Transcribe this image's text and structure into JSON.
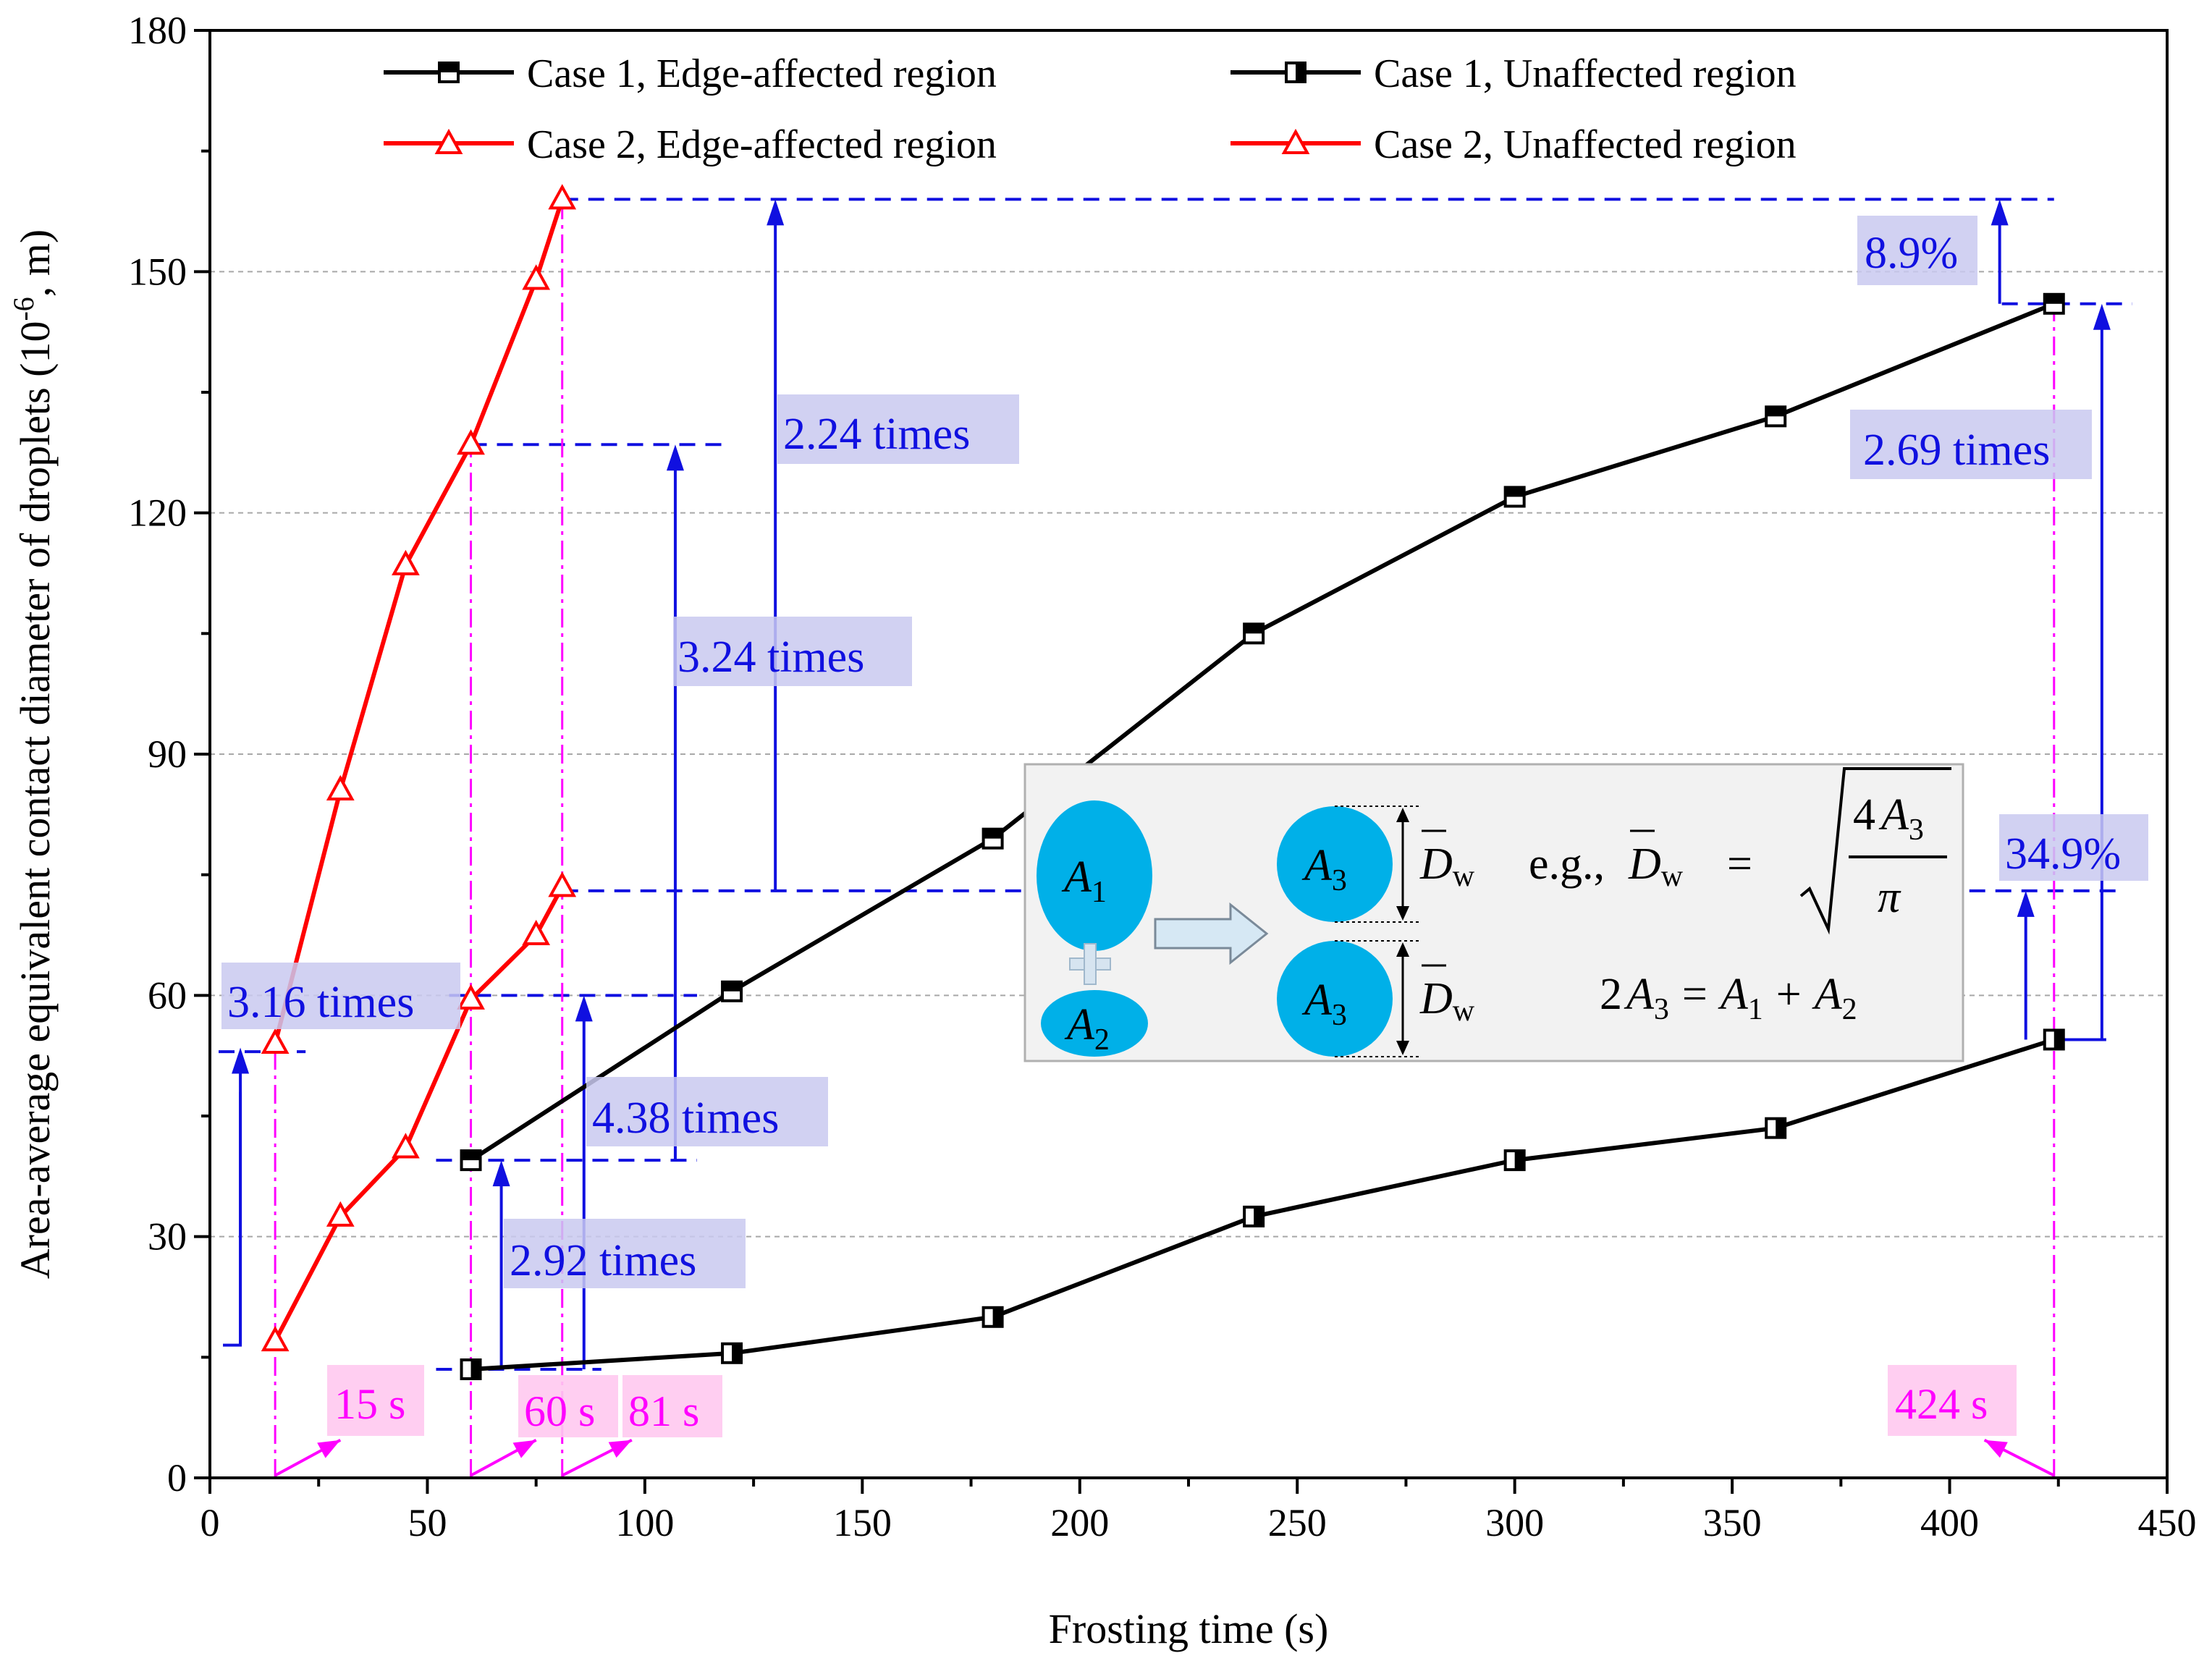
{
  "chart_data": {
    "type": "line",
    "xlabel": "Frosting time (s)",
    "ylabel_main": "Area-average equivalent contact diameter of droplets (10",
    "ylabel_sup": "-6",
    "ylabel_end": ", m)",
    "xlim": [
      0,
      450
    ],
    "ylim": [
      0,
      180
    ],
    "xticks": [
      0,
      50,
      100,
      150,
      200,
      250,
      300,
      350,
      400,
      450
    ],
    "yticks": [
      0,
      30,
      60,
      90,
      120,
      150,
      180
    ],
    "grid_y": [
      30,
      60,
      90,
      120,
      150
    ],
    "series": [
      {
        "name": "Case 1, Edge-affected region",
        "color": "#000000",
        "marker": "square",
        "x": [
          60,
          120,
          180,
          240,
          300,
          360,
          424
        ],
        "y": [
          39.5,
          60.5,
          79.5,
          105,
          122,
          132,
          146
        ]
      },
      {
        "name": "Case 1, Unaffected region",
        "color": "#000000",
        "marker": "square",
        "x": [
          60,
          120,
          180,
          240,
          300,
          360,
          424
        ],
        "y": [
          13.5,
          15.5,
          20,
          32.5,
          39.5,
          43.5,
          54.5
        ]
      },
      {
        "name": "Case 2, Edge-affected region",
        "color": "#ff0000",
        "marker": "triangle",
        "x": [
          15,
          30,
          45,
          60,
          75,
          81
        ],
        "y": [
          54,
          85.5,
          113.5,
          128.5,
          149,
          159
        ]
      },
      {
        "name": "Case 2, Unaffected region",
        "color": "#ff0000",
        "marker": "triangle",
        "x": [
          15,
          30,
          45,
          60,
          75,
          81
        ],
        "y": [
          17,
          32.5,
          41,
          59.5,
          67.5,
          73.5
        ]
      }
    ],
    "annotations": [
      {
        "text": "2.24 times"
      },
      {
        "text": "3.24 times"
      },
      {
        "text": "2.69 times"
      },
      {
        "text": "8.9%"
      },
      {
        "text": "34.9%"
      },
      {
        "text": "3.16 times"
      },
      {
        "text": "4.38 times"
      },
      {
        "text": "2.92 times"
      }
    ],
    "time_markers": [
      {
        "text": "15 s",
        "x": 15
      },
      {
        "text": "60 s",
        "x": 60
      },
      {
        "text": "81 s",
        "x": 81
      },
      {
        "text": "424 s",
        "x": 424
      }
    ],
    "inset": {
      "a1": "A",
      "a1_sub": "1",
      "a2": "A",
      "a2_sub": "2",
      "a3": "A",
      "a3_sub": "3",
      "dw": "D",
      "dw_sub": "w",
      "eg": "e.g.,",
      "eq_rhs_num": "4",
      "pi": "π",
      "eq2_lhs": "2",
      "eq2_mid": "=",
      "eq2_plus": "+"
    }
  },
  "colors": {
    "case1": "#000000",
    "case2": "#ff0000",
    "annotation": "#1010e0",
    "time": "#ff00ff",
    "droplet": "#00b0e8",
    "inset_bg": "#f2f2f2"
  }
}
